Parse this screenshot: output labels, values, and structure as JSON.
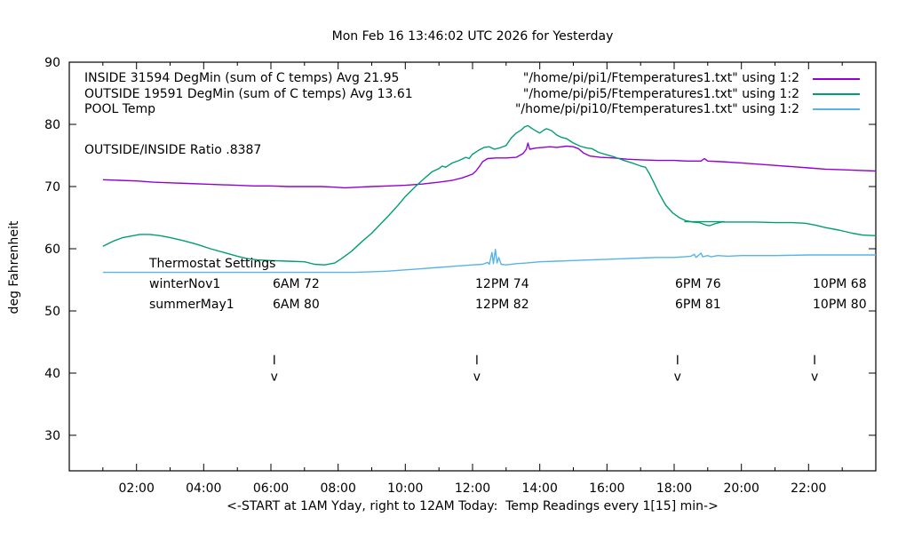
{
  "chart_data": {
    "type": "line",
    "title": "Mon Feb 16 13:46:02 UTC 2026 for Yesterday",
    "xlabel": "<-START at 1AM Yday, right to 12AM Today:  Temp Readings every 1[15] min->",
    "ylabel": "deg Fahrenheit",
    "xlim_hours": [
      0,
      24
    ],
    "ylim": [
      24,
      90
    ],
    "grid": false,
    "legend_position": "top-right-inside",
    "x_tick_hours": [
      2,
      4,
      6,
      8,
      10,
      12,
      14,
      16,
      18,
      20,
      22
    ],
    "x_tick_labels": [
      "02:00",
      "04:00",
      "06:00",
      "08:00",
      "10:00",
      "12:00",
      "14:00",
      "16:00",
      "18:00",
      "20:00",
      "22:00"
    ],
    "x_minor_tick_every_hours": 1,
    "y_ticks": [
      30,
      40,
      50,
      60,
      70,
      80,
      90
    ],
    "series": [
      {
        "name": "INSIDE",
        "label": "INSIDE 31594 DegMin (sum of C temps) Avg 21.95",
        "file_label": "\"/home/pi/pi1/Ftemperatures1.txt\" using 1:2",
        "color": "#9400d3",
        "points": [
          [
            1,
            71.1
          ],
          [
            1.5,
            71
          ],
          [
            2,
            70.9
          ],
          [
            2.5,
            70.7
          ],
          [
            3,
            70.6
          ],
          [
            3.5,
            70.5
          ],
          [
            4,
            70.4
          ],
          [
            4.5,
            70.3
          ],
          [
            5,
            70.2
          ],
          [
            5.5,
            70.1
          ],
          [
            6,
            70.1
          ],
          [
            6.5,
            70
          ],
          [
            7,
            70
          ],
          [
            7.5,
            70
          ],
          [
            7.9,
            69.9
          ],
          [
            8.2,
            69.8
          ],
          [
            8.6,
            69.9
          ],
          [
            9,
            70
          ],
          [
            9.5,
            70.1
          ],
          [
            10,
            70.2
          ],
          [
            10.5,
            70.4
          ],
          [
            11,
            70.7
          ],
          [
            11.4,
            71
          ],
          [
            11.7,
            71.4
          ],
          [
            12,
            72
          ],
          [
            12.1,
            72.5
          ],
          [
            12.2,
            73.2
          ],
          [
            12.3,
            74
          ],
          [
            12.45,
            74.5
          ],
          [
            12.7,
            74.6
          ],
          [
            13,
            74.6
          ],
          [
            13.3,
            74.7
          ],
          [
            13.5,
            75.3
          ],
          [
            13.6,
            76
          ],
          [
            13.65,
            77
          ],
          [
            13.7,
            76
          ],
          [
            13.9,
            76.2
          ],
          [
            14.1,
            76.3
          ],
          [
            14.3,
            76.4
          ],
          [
            14.5,
            76.3
          ],
          [
            14.8,
            76.5
          ],
          [
            15,
            76.4
          ],
          [
            15.15,
            76.1
          ],
          [
            15.3,
            75.4
          ],
          [
            15.5,
            74.9
          ],
          [
            15.8,
            74.7
          ],
          [
            16.2,
            74.6
          ],
          [
            16.6,
            74.4
          ],
          [
            17,
            74.3
          ],
          [
            17.5,
            74.2
          ],
          [
            18,
            74.2
          ],
          [
            18.4,
            74.1
          ],
          [
            18.8,
            74.1
          ],
          [
            18.9,
            74.5
          ],
          [
            19,
            74.1
          ],
          [
            19.4,
            74
          ],
          [
            20,
            73.8
          ],
          [
            20.5,
            73.6
          ],
          [
            21,
            73.4
          ],
          [
            21.5,
            73.2
          ],
          [
            22,
            73
          ],
          [
            22.5,
            72.8
          ],
          [
            23,
            72.7
          ],
          [
            23.5,
            72.6
          ],
          [
            24,
            72.5
          ]
        ]
      },
      {
        "name": "OUTSIDE",
        "label": "OUTSIDE 19591 DegMin (sum of C temps) Avg 13.61",
        "file_label": "\"/home/pi/pi5/Ftemperatures1.txt\" using 1:2",
        "color": "#009e73",
        "points": [
          [
            1,
            60.4
          ],
          [
            1.3,
            61.2
          ],
          [
            1.6,
            61.8
          ],
          [
            1.9,
            62.1
          ],
          [
            2.1,
            62.3
          ],
          [
            2.4,
            62.3
          ],
          [
            2.7,
            62.1
          ],
          [
            3,
            61.8
          ],
          [
            3.4,
            61.3
          ],
          [
            3.8,
            60.7
          ],
          [
            4.2,
            60
          ],
          [
            4.6,
            59.4
          ],
          [
            5,
            58.8
          ],
          [
            5.3,
            58.4
          ],
          [
            5.6,
            58.2
          ],
          [
            6,
            58.1
          ],
          [
            6.5,
            58
          ],
          [
            7,
            57.9
          ],
          [
            7.3,
            57.5
          ],
          [
            7.6,
            57.4
          ],
          [
            7.9,
            57.7
          ],
          [
            8.1,
            58.4
          ],
          [
            8.4,
            59.6
          ],
          [
            8.7,
            61.1
          ],
          [
            9,
            62.5
          ],
          [
            9.3,
            64.2
          ],
          [
            9.5,
            65.3
          ],
          [
            9.8,
            67.1
          ],
          [
            10,
            68.4
          ],
          [
            10.3,
            70
          ],
          [
            10.5,
            71
          ],
          [
            10.8,
            72.4
          ],
          [
            11,
            72.9
          ],
          [
            11.1,
            73.3
          ],
          [
            11.2,
            73.1
          ],
          [
            11.4,
            73.8
          ],
          [
            11.6,
            74.2
          ],
          [
            11.8,
            74.7
          ],
          [
            11.9,
            74.5
          ],
          [
            12,
            75.2
          ],
          [
            12.2,
            75.9
          ],
          [
            12.35,
            76.3
          ],
          [
            12.5,
            76.4
          ],
          [
            12.65,
            76
          ],
          [
            12.8,
            76.2
          ],
          [
            13,
            76.6
          ],
          [
            13.15,
            77.8
          ],
          [
            13.3,
            78.6
          ],
          [
            13.45,
            79.1
          ],
          [
            13.55,
            79.6
          ],
          [
            13.65,
            79.8
          ],
          [
            13.75,
            79.4
          ],
          [
            13.9,
            78.9
          ],
          [
            14,
            78.6
          ],
          [
            14.1,
            79
          ],
          [
            14.2,
            79.3
          ],
          [
            14.35,
            79
          ],
          [
            14.5,
            78.3
          ],
          [
            14.65,
            77.9
          ],
          [
            14.8,
            77.7
          ],
          [
            15,
            77
          ],
          [
            15.2,
            76.5
          ],
          [
            15.4,
            76.2
          ],
          [
            15.55,
            76.1
          ],
          [
            15.75,
            75.5
          ],
          [
            16,
            75.1
          ],
          [
            16.2,
            74.8
          ],
          [
            16.5,
            74.2
          ],
          [
            16.8,
            73.7
          ],
          [
            17,
            73.3
          ],
          [
            17.15,
            73.1
          ],
          [
            17.25,
            72.2
          ],
          [
            17.4,
            70.6
          ],
          [
            17.55,
            68.9
          ],
          [
            17.75,
            67
          ],
          [
            17.95,
            65.8
          ],
          [
            18.15,
            65
          ],
          [
            18.35,
            64.5
          ],
          [
            18.55,
            64.3
          ],
          [
            18.75,
            64.2
          ],
          [
            18.95,
            63.8
          ],
          [
            19.05,
            63.7
          ],
          [
            19.2,
            64
          ],
          [
            19.4,
            64.3
          ],
          [
            19.8,
            64.3
          ],
          [
            20.4,
            64.3
          ],
          [
            21,
            64.2
          ],
          [
            21.5,
            64.2
          ],
          [
            21.9,
            64.1
          ],
          [
            22.2,
            63.8
          ],
          [
            22.5,
            63.4
          ],
          [
            22.9,
            63
          ],
          [
            23.3,
            62.5
          ],
          [
            23.6,
            62.2
          ],
          [
            24,
            62.1
          ]
        ],
        "extra_segment": [
          [
            18.3,
            64.35
          ],
          [
            19.5,
            64.35
          ]
        ]
      },
      {
        "name": "POOL",
        "label": "POOL Temp",
        "file_label": "\"/home/pi/pi10/Ftemperatures1.txt\" using 1:2",
        "color": "#56b4e9",
        "points": [
          [
            1,
            56.2
          ],
          [
            3,
            56.2
          ],
          [
            5,
            56.2
          ],
          [
            7,
            56.2
          ],
          [
            8.5,
            56.2
          ],
          [
            9,
            56.3
          ],
          [
            9.5,
            56.4
          ],
          [
            10,
            56.6
          ],
          [
            10.5,
            56.8
          ],
          [
            11,
            57
          ],
          [
            11.5,
            57.2
          ],
          [
            12,
            57.4
          ],
          [
            12.3,
            57.5
          ],
          [
            12.45,
            57.8
          ],
          [
            12.5,
            57.5
          ],
          [
            12.58,
            59.4
          ],
          [
            12.62,
            57.6
          ],
          [
            12.68,
            59.9
          ],
          [
            12.73,
            57.7
          ],
          [
            12.78,
            58.6
          ],
          [
            12.85,
            57.5
          ],
          [
            13,
            57.4
          ],
          [
            13.3,
            57.6
          ],
          [
            13.6,
            57.7
          ],
          [
            14,
            57.9
          ],
          [
            14.5,
            58
          ],
          [
            15,
            58.1
          ],
          [
            15.5,
            58.2
          ],
          [
            16,
            58.3
          ],
          [
            16.5,
            58.4
          ],
          [
            17,
            58.5
          ],
          [
            17.5,
            58.6
          ],
          [
            18,
            58.6
          ],
          [
            18.3,
            58.7
          ],
          [
            18.5,
            58.8
          ],
          [
            18.6,
            59.1
          ],
          [
            18.65,
            58.6
          ],
          [
            18.8,
            59.3
          ],
          [
            18.85,
            58.7
          ],
          [
            19,
            58.9
          ],
          [
            19.1,
            58.7
          ],
          [
            19.3,
            58.9
          ],
          [
            19.6,
            58.8
          ],
          [
            20,
            58.9
          ],
          [
            21,
            58.9
          ],
          [
            22,
            59
          ],
          [
            23,
            59
          ],
          [
            24,
            59
          ]
        ]
      }
    ],
    "arrows": {
      "labels": [
        "6AM",
        "12PM",
        "6PM",
        "10PM"
      ],
      "hours": [
        6.1,
        12.13,
        18.1,
        22.18
      ],
      "glyph": "v",
      "top_f": 42.9,
      "bottom_f": 41.4,
      "glyph_f": 39.5
    },
    "annotations": {
      "ratio": "OUTSIDE/INSIDE Ratio .8387",
      "thermostat": {
        "heading": "Thermostat Settings",
        "rows": [
          {
            "name": "winterNov1",
            "settings": [
              "6AM 72",
              "12PM 74",
              "6PM 76",
              "10PM 68"
            ]
          },
          {
            "name": "summerMay1",
            "settings": [
              "6AM 80",
              "12PM 82",
              "6PM 81",
              "10PM 80"
            ]
          }
        ]
      }
    }
  }
}
